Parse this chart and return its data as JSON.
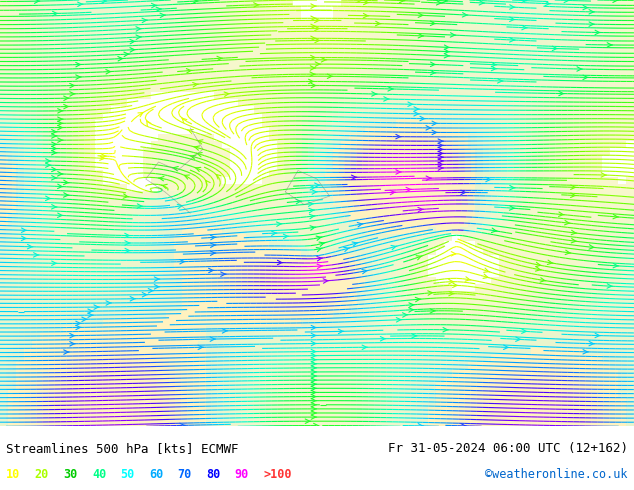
{
  "title_left": "Streamlines 500 hPa [kts] ECMWF",
  "title_right": "Fr 31-05-2024 06:00 UTC (12+162)",
  "copyright": "©weatheronline.co.uk",
  "legend_values": [
    "10",
    "20",
    "30",
    "40",
    "50",
    "60",
    "70",
    "80",
    "90",
    ">100"
  ],
  "legend_colors": [
    "#ffff00",
    "#c8ff00",
    "#00ff00",
    "#00ff64",
    "#00ffff",
    "#00c8ff",
    "#0096ff",
    "#0064ff",
    "#ff00ff",
    "#ff0000"
  ],
  "bg_color": "#f0f0f0",
  "fig_bg": "#ffffff",
  "streamline_color_stops": [
    [
      0.0,
      "#ffff00"
    ],
    [
      0.11,
      "#c8ff00"
    ],
    [
      0.22,
      "#00ff00"
    ],
    [
      0.33,
      "#00ff64"
    ],
    [
      0.44,
      "#00ffff"
    ],
    [
      0.55,
      "#00c8ff"
    ],
    [
      0.66,
      "#0096ff"
    ],
    [
      0.77,
      "#0064ff"
    ],
    [
      0.88,
      "#ff00ff"
    ],
    [
      1.0,
      "#ff0000"
    ]
  ],
  "seed_density": 3,
  "figsize": [
    6.34,
    4.9
  ],
  "dpi": 100
}
